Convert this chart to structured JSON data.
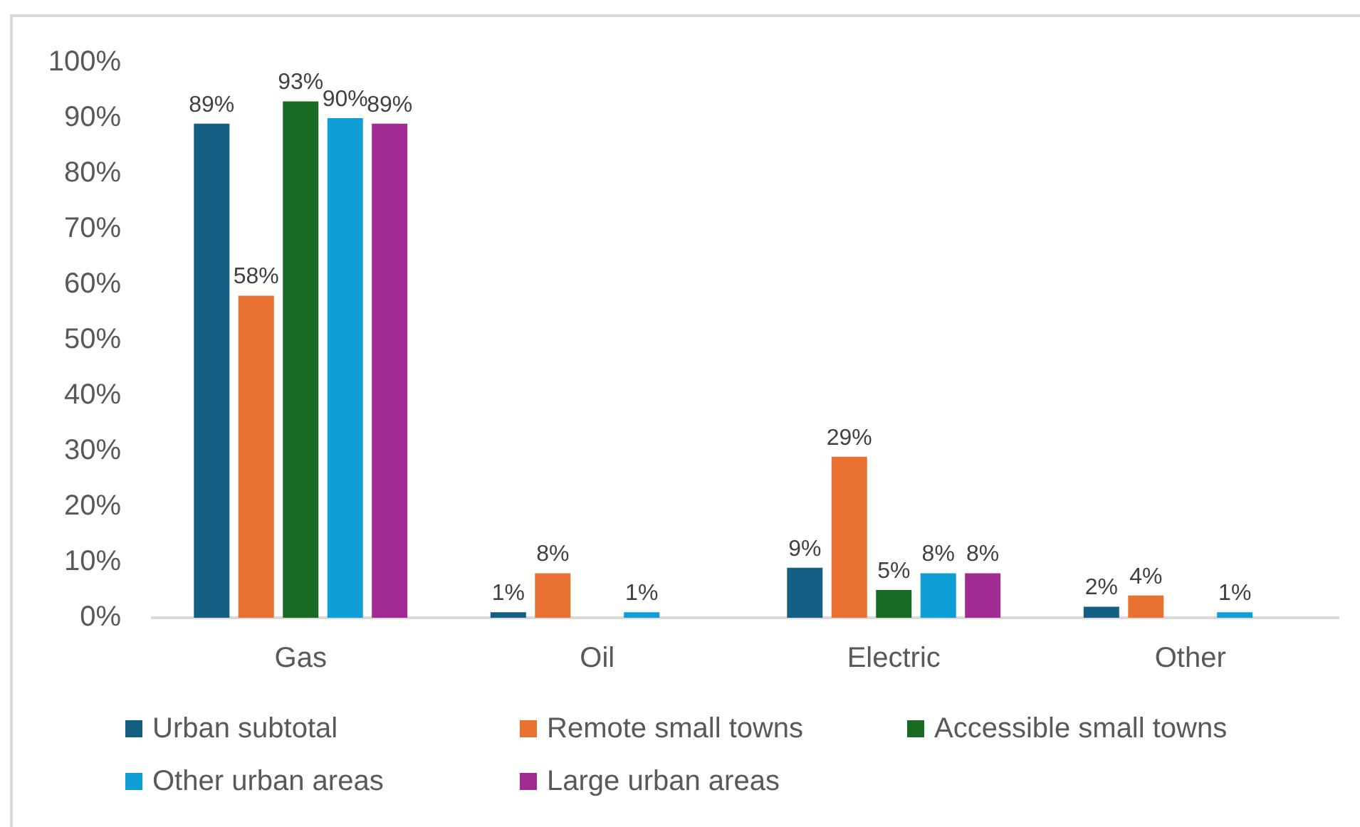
{
  "chart_data": {
    "type": "bar",
    "categories": [
      "Gas",
      "Oil",
      "Electric",
      "Other"
    ],
    "series": [
      {
        "name": "Urban subtotal",
        "color": "#156082",
        "values": [
          89,
          1,
          9,
          2
        ],
        "value_labels": [
          "89%",
          "1%",
          "9%",
          "2%"
        ]
      },
      {
        "name": "Remote small towns",
        "color": "#e97132",
        "values": [
          58,
          8,
          29,
          4
        ],
        "value_labels": [
          "58%",
          "8%",
          "29%",
          "4%"
        ]
      },
      {
        "name": "Accessible small towns",
        "color": "#196b24",
        "values": [
          93,
          null,
          5,
          null
        ],
        "value_labels": [
          "93%",
          null,
          "5%",
          null
        ]
      },
      {
        "name": "Other urban areas",
        "color": "#0f9ed5",
        "values": [
          90,
          1,
          8,
          1
        ],
        "value_labels": [
          "90%",
          "1%",
          "8%",
          "1%"
        ]
      },
      {
        "name": "Large urban areas",
        "color": "#a02b93",
        "values": [
          89,
          null,
          8,
          null
        ],
        "value_labels": [
          "89%",
          null,
          "8%",
          null
        ]
      }
    ],
    "ylim": [
      0,
      100
    ],
    "yticks": [
      {
        "value": 0,
        "label": "0%"
      },
      {
        "value": 10,
        "label": "10%"
      },
      {
        "value": 20,
        "label": "20%"
      },
      {
        "value": 30,
        "label": "30%"
      },
      {
        "value": 40,
        "label": "40%"
      },
      {
        "value": 50,
        "label": "50%"
      },
      {
        "value": 60,
        "label": "60%"
      },
      {
        "value": 70,
        "label": "70%"
      },
      {
        "value": 80,
        "label": "80%"
      },
      {
        "value": 90,
        "label": "90%"
      },
      {
        "value": 100,
        "label": "100%"
      }
    ],
    "legend": "bottom"
  }
}
